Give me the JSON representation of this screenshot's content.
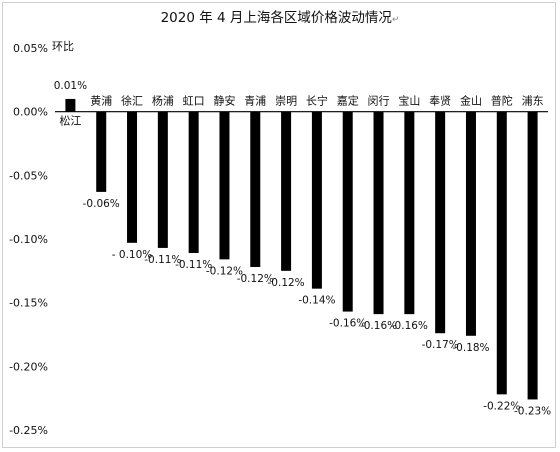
{
  "chart_data": {
    "type": "bar",
    "title": "2020 年 4 月上海各区域价格波动情况",
    "title_suffix_mark": "↵",
    "legend": "环比",
    "legend_position": "top-left",
    "ylabel": "",
    "xlabel": "",
    "ylim": [
      -0.25,
      0.05
    ],
    "yticks": [
      0.05,
      0.0,
      -0.05,
      -0.1,
      -0.15,
      -0.2,
      -0.25
    ],
    "ytick_labels": [
      "0.05%",
      "0.00%",
      "-0.05%",
      "-0.10%",
      "-0.15%",
      "-0.20%",
      "-0.25%"
    ],
    "grid": false,
    "bar_color": "#000000",
    "categories": [
      "松江",
      "黄浦",
      "徐汇",
      "杨浦",
      "虹口",
      "静安",
      "青浦",
      "崇明",
      "长宁",
      "嘉定",
      "闵行",
      "宝山",
      "奉贤",
      "金山",
      "普陀",
      "浦东"
    ],
    "values": [
      0.01,
      -0.063,
      -0.103,
      -0.107,
      -0.111,
      -0.116,
      -0.122,
      -0.125,
      -0.139,
      -0.157,
      -0.159,
      -0.159,
      -0.174,
      -0.176,
      -0.222,
      -0.226
    ],
    "value_labels": [
      "0.01%",
      "-0.06%",
      "- 0.10%",
      "-0.11%",
      "-0.11%",
      "-0.12%",
      "-0.12%",
      "-0.12%",
      "-0.14%",
      "-0.16%",
      "-0.16%",
      "-0.16%",
      "-0.17%",
      "-0.18%",
      "-0.22%",
      "-0.23%"
    ],
    "unit": "%"
  }
}
